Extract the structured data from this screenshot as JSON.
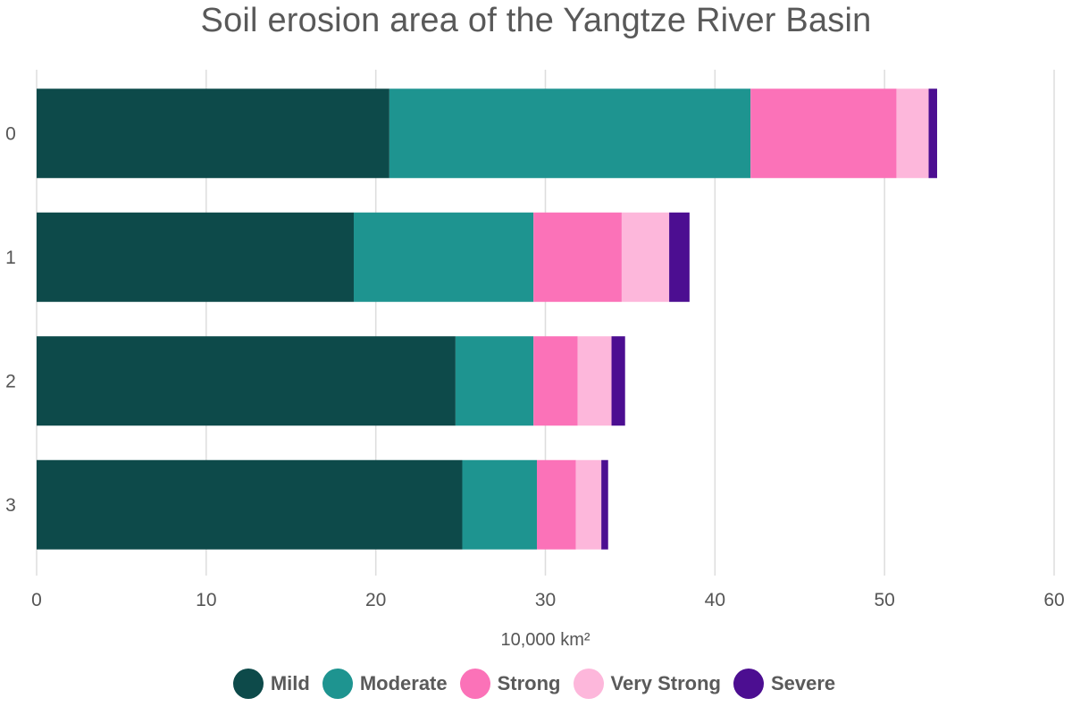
{
  "chart_data": {
    "type": "bar",
    "orientation": "horizontal",
    "stacked": true,
    "title": "Soil erosion area of the Yangtze River Basin",
    "xlabel": "10,000 km²",
    "ylabel": "",
    "xlim": [
      0,
      60
    ],
    "xticks": [
      0,
      10,
      20,
      30,
      40,
      50,
      60
    ],
    "categories": [
      "0",
      "1",
      "2",
      "3"
    ],
    "grid": true,
    "legend_position": "bottom",
    "series": [
      {
        "name": "Mild",
        "color": "#0d4a4a",
        "values": [
          20.8,
          18.7,
          24.7,
          25.1
        ]
      },
      {
        "name": "Moderate",
        "color": "#1e9490",
        "values": [
          21.3,
          10.6,
          4.6,
          4.4
        ]
      },
      {
        "name": "Strong",
        "color": "#fb72b8",
        "values": [
          8.6,
          5.2,
          2.6,
          2.3
        ]
      },
      {
        "name": "Very Strong",
        "color": "#fdb7db",
        "values": [
          1.9,
          2.8,
          2.0,
          1.5
        ]
      },
      {
        "name": "Severe",
        "color": "#4c0e91",
        "values": [
          0.5,
          1.2,
          0.8,
          0.4
        ]
      }
    ]
  }
}
